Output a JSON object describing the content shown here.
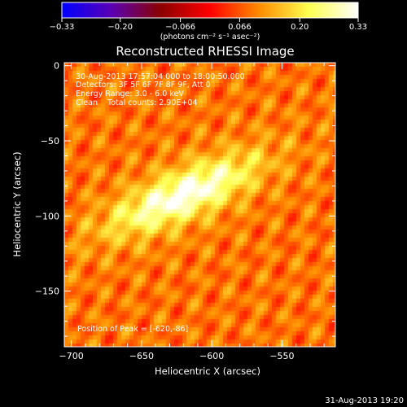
{
  "chart_data": {
    "type": "heatmap",
    "title": "Reconstructed RHESSI Image",
    "xlabel": "Heliocentric X (arcsec)",
    "ylabel": "Heliocentric Y (arcsec)",
    "xlim": [
      -705,
      -512
    ],
    "ylim": [
      -187,
      2
    ],
    "x_ticks": [
      -700,
      -650,
      -600,
      -550
    ],
    "x_tick_labels": [
      "−700",
      "−650",
      "−600",
      "−550"
    ],
    "y_ticks": [
      0,
      -50,
      -100,
      -150
    ],
    "y_tick_labels": [
      "0",
      "−50",
      "−100",
      "−150"
    ],
    "colorbar": {
      "min": -0.33,
      "max": 0.33,
      "ticks": [
        -0.33,
        -0.2,
        -0.066,
        0.066,
        0.2,
        0.33
      ],
      "tick_labels": [
        "−0.33",
        "−0.20",
        "−0.066",
        "0.066",
        "0.20",
        "0.33"
      ],
      "unit_label": "(photons cm⁻² s⁻¹ asec⁻²)",
      "colors": [
        "#0000ff",
        "#5a00b4",
        "#8b0000",
        "#ff0000",
        "#ff8c00",
        "#ffff50",
        "#ffffff"
      ]
    },
    "annotations": [
      "30-Aug-2013 17:57:04.000 to 18:00:50.000",
      "Detectors: 3F 5F 6F 7F 8F 9F, Att 0",
      "Energy Range: 3.0 - 6.0 keV",
      "Clean    Total counts: 2.90E+04"
    ],
    "peak_label": "Position of Peak = [-620,-86]",
    "peak": {
      "x": -620,
      "y": -86,
      "value": 0.33
    },
    "source": {
      "center_x": -620,
      "center_y": -86,
      "sigma_major": 32,
      "sigma_minor": 9,
      "angle_deg": 22
    },
    "background_level": 0.09,
    "timestamp": "31-Aug-2013 19:20"
  }
}
